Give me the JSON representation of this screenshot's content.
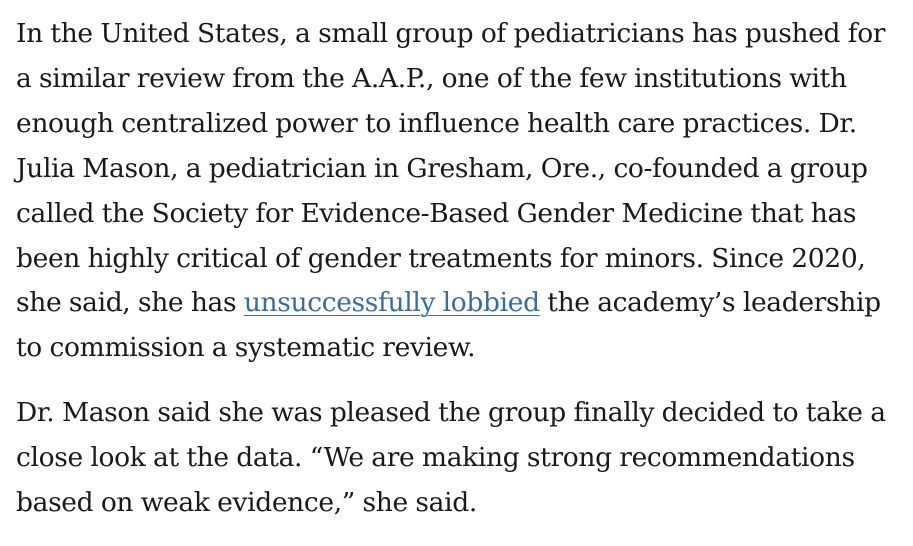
{
  "article": {
    "paragraph_1": {
      "line_1": "In the United States, a small group of pediatricians has pushed for",
      "line_2": "a similar review from the A.A.P., one of the few institutions with",
      "line_3": "enough centralized power to influence health care practices. Dr.",
      "line_4": "Julia Mason, a pediatrician in Gresham, Ore., co-founded a group",
      "line_5": "called the Society for Evidence-Based Gender Medicine that has",
      "line_6": "been highly critical of gender treatments for minors. Since 2020,",
      "line_7_before_link": "she said, she has ",
      "link_text": "unsuccessfully lobbied",
      "line_7_after_link": " the academy’s leadership",
      "line_8": "to commission a systematic review."
    },
    "paragraph_2": {
      "line_1": "Dr. Mason said she was pleased the group finally decided to take a",
      "line_2": "close look at the data. “We are making strong recommendations",
      "line_3": "based on weak evidence,” she said."
    },
    "colors": {
      "text": "#1a1a1a",
      "link": "#3a6d9f",
      "background": "#ffffff"
    }
  }
}
